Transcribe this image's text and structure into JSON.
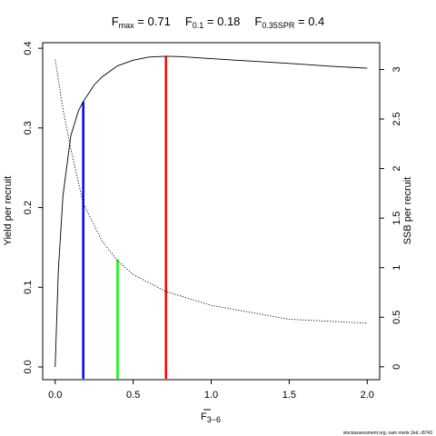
{
  "chart_data": {
    "type": "line",
    "title": {
      "parts": [
        {
          "main": "F",
          "sub": "max",
          "rest": " = 0.71"
        },
        {
          "main": "F",
          "sub": "0.1",
          "rest": " = 0.18"
        },
        {
          "main": "F",
          "sub": "0.35SPR",
          "rest": " = 0.4"
        }
      ]
    },
    "xlabel": {
      "main": "F",
      "sub": "3−6"
    },
    "ylabel_left": "Yield per recruit",
    "ylabel_right": "SSB per recruit",
    "xlim": [
      -0.08,
      2.08
    ],
    "ylim_left": [
      -0.016,
      0.407
    ],
    "ylim_right": [
      -0.13,
      3.27
    ],
    "x_ticks": [
      0.0,
      0.5,
      1.0,
      1.5,
      2.0
    ],
    "x_tick_labels": [
      "0.0",
      "0.5",
      "1.0",
      "1.5",
      "2.0"
    ],
    "y_left_ticks": [
      0.0,
      0.1,
      0.2,
      0.3,
      0.4
    ],
    "y_left_tick_labels": [
      "0.0",
      "0.1",
      "0.2",
      "0.3",
      "0.4"
    ],
    "y_right_ticks": [
      0,
      0.5,
      1,
      1.5,
      2,
      2.5,
      3
    ],
    "y_right_tick_labels": [
      "0",
      "0.5",
      "1",
      "1.5",
      "2",
      "2.5",
      "3"
    ],
    "series": [
      {
        "axis": "left",
        "style": "solid",
        "color": "#000000",
        "x": [
          0,
          0.02,
          0.05,
          0.1,
          0.15,
          0.18,
          0.25,
          0.3,
          0.4,
          0.5,
          0.6,
          0.71,
          0.8,
          1.0,
          1.2,
          1.5,
          1.8,
          2.0
        ],
        "y": [
          0,
          0.12,
          0.215,
          0.29,
          0.322,
          0.333,
          0.354,
          0.364,
          0.378,
          0.385,
          0.389,
          0.39,
          0.3895,
          0.387,
          0.3845,
          0.381,
          0.377,
          0.375
        ]
      },
      {
        "axis": "right",
        "style": "dotted",
        "color": "#000000",
        "x": [
          0,
          0.05,
          0.1,
          0.18,
          0.3,
          0.4,
          0.5,
          0.71,
          1.0,
          1.5,
          2.0
        ],
        "y": [
          3.1,
          2.6,
          2.2,
          1.65,
          1.27,
          1.07,
          0.93,
          0.76,
          0.62,
          0.48,
          0.44
        ]
      }
    ],
    "reference_lines": [
      {
        "label": "F0.1",
        "x": 0.18,
        "y": 0.333,
        "color": "#0000ff"
      },
      {
        "label": "F0.35SPR",
        "x": 0.4,
        "y": 0.135,
        "color": "#00ff00"
      },
      {
        "label": "Fmax",
        "x": 0.71,
        "y": 0.39,
        "color": "#ff0000"
      }
    ]
  },
  "footnote": "stockassessment.org, nam monk 2ed, r8743"
}
